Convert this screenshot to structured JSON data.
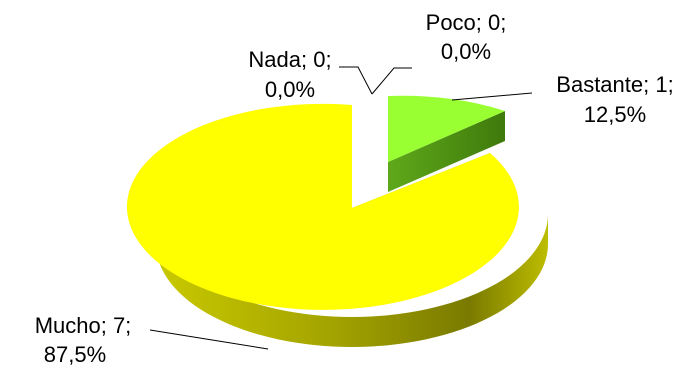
{
  "chart_data": {
    "type": "pie",
    "title": "",
    "legend": "none",
    "slices": [
      {
        "category": "Poco",
        "value": 0,
        "percent": "0,0%",
        "color": "#cfd8a8",
        "label_line1": "Poco; 0;",
        "label_line2": "0,0%"
      },
      {
        "category": "Bastante",
        "value": 1,
        "percent": "12,5%",
        "color": "#99ff33",
        "label_line1": "Bastante; 1;",
        "label_line2": "12,5%"
      },
      {
        "category": "Mucho",
        "value": 7,
        "percent": "87,5%",
        "color": "#ffff00",
        "label_line1": "Mucho; 7;",
        "label_line2": "87,5%"
      },
      {
        "category": "Nada",
        "value": 0,
        "percent": "0,0%",
        "color": "#cfd8a8",
        "label_line1": "Nada; 0;",
        "label_line2": "0,0%"
      }
    ]
  }
}
